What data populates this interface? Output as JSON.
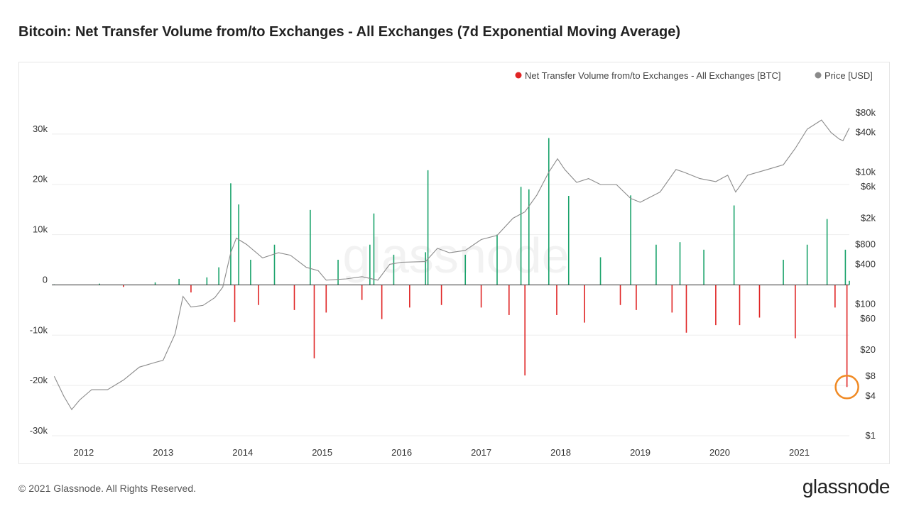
{
  "title": "Bitcoin: Net Transfer Volume from/to Exchanges - All Exchanges (7d Exponential Moving Average)",
  "footer": "© 2021 Glassnode. All Rights Reserved.",
  "brand": "glassnode",
  "watermark": "glassnode",
  "colors": {
    "inflow": "#e02424",
    "outflow": "#1aa36b",
    "price": "#8a8a8a",
    "highlight": "#f08a24",
    "grid": "#eeeeee"
  },
  "chart_data": {
    "type": "bar",
    "title": "Bitcoin: Net Transfer Volume from/to Exchanges - All Exchanges (7d Exponential Moving Average)",
    "legend": [
      {
        "name": "Net Transfer Volume from/to Exchanges - All Exchanges [BTC]",
        "color": "#e02424"
      },
      {
        "name": "Price [USD]",
        "color": "#8a8a8a"
      }
    ],
    "legend_position": "top-right",
    "x_range": [
      2011.6,
      2021.63
    ],
    "x_ticks": [
      "2012",
      "2013",
      "2014",
      "2015",
      "2016",
      "2017",
      "2018",
      "2019",
      "2020",
      "2021"
    ],
    "y_left": {
      "range": [
        -30000,
        40000
      ],
      "ticks": [
        {
          "value": 30000,
          "label": "30k"
        },
        {
          "value": 20000,
          "label": "20k"
        },
        {
          "value": 10000,
          "label": "10k"
        },
        {
          "value": 0,
          "label": "0"
        },
        {
          "value": -10000,
          "label": "-10k"
        },
        {
          "value": -20000,
          "label": "-20k"
        },
        {
          "value": -30000,
          "label": "-30k"
        }
      ]
    },
    "y_right": {
      "scale": "log",
      "range": [
        1,
        220000
      ],
      "ticks": [
        {
          "value": 80000,
          "label": "$80k"
        },
        {
          "value": 40000,
          "label": "$40k"
        },
        {
          "value": 10000,
          "label": "$10k"
        },
        {
          "value": 6000,
          "label": "$6k"
        },
        {
          "value": 2000,
          "label": "$2k"
        },
        {
          "value": 800,
          "label": "$800"
        },
        {
          "value": 400,
          "label": "$400"
        },
        {
          "value": 100,
          "label": "$100"
        },
        {
          "value": 60,
          "label": "$60"
        },
        {
          "value": 20,
          "label": "$20"
        },
        {
          "value": 8,
          "label": "$8"
        },
        {
          "value": 4,
          "label": "$4"
        },
        {
          "value": 1,
          "label": "$1"
        }
      ]
    },
    "grid": true,
    "net_flow_series": {
      "name": "Net Transfer Volume from/to Exchanges - All Exchanges [BTC]",
      "points": [
        [
          2011.63,
          100
        ],
        [
          2012.2,
          250
        ],
        [
          2012.5,
          -400
        ],
        [
          2012.9,
          500
        ],
        [
          2013.2,
          1200
        ],
        [
          2013.35,
          -1500
        ],
        [
          2013.55,
          1500
        ],
        [
          2013.7,
          3500
        ],
        [
          2013.85,
          20200
        ],
        [
          2013.9,
          -7400
        ],
        [
          2013.95,
          16000
        ],
        [
          2014.1,
          5000
        ],
        [
          2014.2,
          -4000
        ],
        [
          2014.4,
          8000
        ],
        [
          2014.65,
          -5000
        ],
        [
          2014.85,
          14900
        ],
        [
          2014.9,
          -14600
        ],
        [
          2015.05,
          -5500
        ],
        [
          2015.2,
          5000
        ],
        [
          2015.5,
          -3000
        ],
        [
          2015.6,
          8000
        ],
        [
          2015.65,
          14200
        ],
        [
          2015.75,
          -6800
        ],
        [
          2015.9,
          6000
        ],
        [
          2016.1,
          -4500
        ],
        [
          2016.3,
          6500
        ],
        [
          2016.33,
          22800
        ],
        [
          2016.5,
          -4000
        ],
        [
          2016.8,
          6000
        ],
        [
          2017.0,
          -4500
        ],
        [
          2017.2,
          10000
        ],
        [
          2017.35,
          -6000
        ],
        [
          2017.5,
          19500
        ],
        [
          2017.55,
          -18000
        ],
        [
          2017.6,
          19000
        ],
        [
          2017.85,
          29200
        ],
        [
          2017.95,
          -6000
        ],
        [
          2018.1,
          17700
        ],
        [
          2018.3,
          -7500
        ],
        [
          2018.5,
          5500
        ],
        [
          2018.75,
          -4000
        ],
        [
          2018.88,
          17800
        ],
        [
          2018.95,
          -5000
        ],
        [
          2019.2,
          8000
        ],
        [
          2019.4,
          -5500
        ],
        [
          2019.5,
          8500
        ],
        [
          2019.58,
          -9500
        ],
        [
          2019.8,
          7000
        ],
        [
          2019.95,
          -8000
        ],
        [
          2020.18,
          15800
        ],
        [
          2020.25,
          -8000
        ],
        [
          2020.5,
          -6500
        ],
        [
          2020.8,
          5000
        ],
        [
          2020.95,
          -10600
        ],
        [
          2021.1,
          8000
        ],
        [
          2021.35,
          13100
        ],
        [
          2021.45,
          -4500
        ],
        [
          2021.58,
          7000
        ],
        [
          2021.6,
          -20300
        ],
        [
          2021.63,
          800
        ]
      ],
      "annotation": {
        "x": 2021.6,
        "y": -20300,
        "marker": "circle"
      }
    },
    "price_series": {
      "name": "Price [USD]",
      "points": [
        [
          2011.63,
          8
        ],
        [
          2011.75,
          4
        ],
        [
          2011.85,
          2.5
        ],
        [
          2011.95,
          3.5
        ],
        [
          2012.1,
          5
        ],
        [
          2012.3,
          5
        ],
        [
          2012.5,
          7
        ],
        [
          2012.7,
          11
        ],
        [
          2012.9,
          13
        ],
        [
          2013.0,
          14
        ],
        [
          2013.15,
          35
        ],
        [
          2013.25,
          130
        ],
        [
          2013.35,
          90
        ],
        [
          2013.5,
          95
        ],
        [
          2013.65,
          125
        ],
        [
          2013.75,
          180
        ],
        [
          2013.85,
          600
        ],
        [
          2013.92,
          1000
        ],
        [
          2014.05,
          800
        ],
        [
          2014.25,
          500
        ],
        [
          2014.45,
          600
        ],
        [
          2014.6,
          550
        ],
        [
          2014.8,
          360
        ],
        [
          2014.95,
          320
        ],
        [
          2015.05,
          230
        ],
        [
          2015.3,
          240
        ],
        [
          2015.5,
          260
        ],
        [
          2015.7,
          230
        ],
        [
          2015.85,
          400
        ],
        [
          2016.0,
          430
        ],
        [
          2016.3,
          440
        ],
        [
          2016.45,
          700
        ],
        [
          2016.6,
          600
        ],
        [
          2016.8,
          650
        ],
        [
          2017.0,
          950
        ],
        [
          2017.2,
          1100
        ],
        [
          2017.4,
          2000
        ],
        [
          2017.55,
          2500
        ],
        [
          2017.7,
          4500
        ],
        [
          2017.85,
          10000
        ],
        [
          2017.96,
          16000
        ],
        [
          2018.05,
          11000
        ],
        [
          2018.2,
          7000
        ],
        [
          2018.35,
          8000
        ],
        [
          2018.5,
          6500
        ],
        [
          2018.7,
          6500
        ],
        [
          2018.88,
          4000
        ],
        [
          2019.0,
          3500
        ],
        [
          2019.25,
          5000
        ],
        [
          2019.45,
          11000
        ],
        [
          2019.55,
          10000
        ],
        [
          2019.75,
          8000
        ],
        [
          2019.95,
          7200
        ],
        [
          2020.1,
          9000
        ],
        [
          2020.2,
          5000
        ],
        [
          2020.35,
          9000
        ],
        [
          2020.6,
          11000
        ],
        [
          2020.8,
          13000
        ],
        [
          2020.95,
          23000
        ],
        [
          2021.1,
          45000
        ],
        [
          2021.28,
          62000
        ],
        [
          2021.4,
          40000
        ],
        [
          2021.5,
          32000
        ],
        [
          2021.55,
          30000
        ],
        [
          2021.63,
          47000
        ]
      ]
    }
  }
}
